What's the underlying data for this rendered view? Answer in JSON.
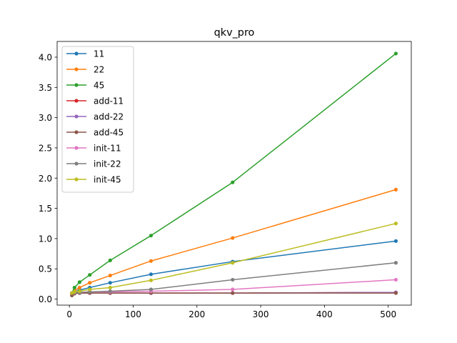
{
  "chart_data": {
    "type": "line",
    "title": "qkv_pro",
    "xlabel": "",
    "ylabel": "",
    "xlim": [
      -19.2,
      536.2
    ],
    "ylim": [
      -0.1,
      4.26
    ],
    "xticks": [
      0,
      100,
      200,
      300,
      400,
      500
    ],
    "yticks": [
      0.0,
      0.5,
      1.0,
      1.5,
      2.0,
      2.5,
      3.0,
      3.5,
      4.0
    ],
    "ytick_labels": [
      "0.0",
      "0.5",
      "1.0",
      "1.5",
      "2.0",
      "2.5",
      "3.0",
      "3.5",
      "4.0"
    ],
    "xtick_labels": [
      "0",
      "100",
      "200",
      "300",
      "400",
      "500"
    ],
    "x": [
      4,
      8,
      16,
      32,
      64,
      128,
      256,
      512
    ],
    "legend_position": "upper-left",
    "grid": false,
    "series": [
      {
        "name": "11",
        "color": "#1f77b4",
        "values": [
          0.09,
          0.12,
          0.15,
          0.19,
          0.27,
          0.41,
          0.62,
          0.96
        ]
      },
      {
        "name": "22",
        "color": "#ff7f0e",
        "values": [
          0.1,
          0.14,
          0.19,
          0.27,
          0.39,
          0.63,
          1.01,
          1.81
        ]
      },
      {
        "name": "45",
        "color": "#2ca02c",
        "values": [
          0.1,
          0.19,
          0.28,
          0.4,
          0.64,
          1.05,
          1.93,
          4.06
        ]
      },
      {
        "name": "add-11",
        "color": "#d62728",
        "values": [
          0.1,
          0.1,
          0.1,
          0.1,
          0.1,
          0.1,
          0.1,
          0.11
        ]
      },
      {
        "name": "add-22",
        "color": "#9467bd",
        "values": [
          0.1,
          0.1,
          0.1,
          0.1,
          0.1,
          0.1,
          0.1,
          0.11
        ]
      },
      {
        "name": "add-45",
        "color": "#8c564b",
        "values": [
          0.06,
          0.09,
          0.1,
          0.1,
          0.1,
          0.1,
          0.1,
          0.1
        ]
      },
      {
        "name": "init-11",
        "color": "#e377c2",
        "values": [
          0.1,
          0.11,
          0.11,
          0.12,
          0.12,
          0.13,
          0.16,
          0.32
        ]
      },
      {
        "name": "init-22",
        "color": "#7f7f7f",
        "values": [
          0.1,
          0.11,
          0.11,
          0.12,
          0.13,
          0.16,
          0.32,
          0.6
        ]
      },
      {
        "name": "init-45",
        "color": "#bcbd22",
        "values": [
          0.1,
          0.12,
          0.13,
          0.16,
          0.19,
          0.31,
          0.6,
          1.25
        ]
      }
    ]
  }
}
